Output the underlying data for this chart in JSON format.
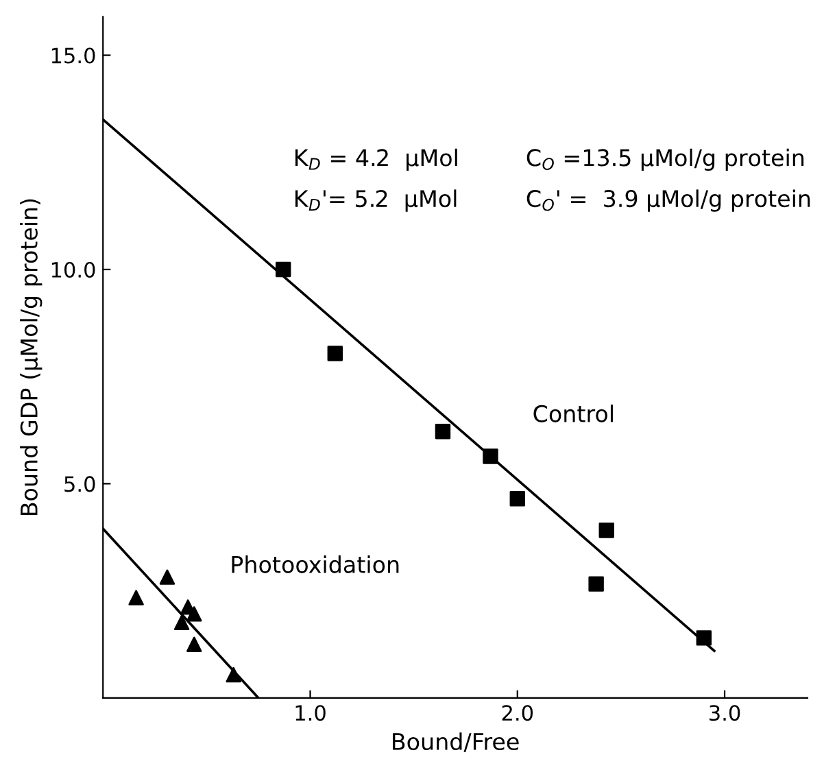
{
  "chart_data": {
    "type": "scatter",
    "xlabel": "Bound/Free",
    "ylabel": "Bound GDP (µMol/g protein)",
    "xlim": [
      0,
      3.4
    ],
    "ylim": [
      0,
      15.9
    ],
    "xticks": [
      {
        "value": 1.0,
        "label": "1.0"
      },
      {
        "value": 2.0,
        "label": "2.0"
      },
      {
        "value": 3.0,
        "label": "3.0"
      }
    ],
    "yticks": [
      {
        "value": 5.0,
        "label": "5.0"
      },
      {
        "value": 10.0,
        "label": "10.0"
      },
      {
        "value": 15.0,
        "label": "15.0"
      }
    ],
    "grid": false,
    "legend": false,
    "series": [
      {
        "name": "Control",
        "marker": "square",
        "color": "#000000",
        "x": [
          0.87,
          1.12,
          1.64,
          1.87,
          2.0,
          2.43,
          2.38,
          2.9
        ],
        "values": [
          10.0,
          8.04,
          6.22,
          5.64,
          4.65,
          3.91,
          2.66,
          1.4
        ]
      },
      {
        "name": "Photooxidation",
        "marker": "triangle",
        "color": "#000000",
        "x": [
          0.16,
          0.31,
          0.41,
          0.44,
          0.38,
          0.44,
          0.63
        ],
        "values": [
          2.34,
          2.82,
          2.12,
          1.96,
          1.76,
          1.25,
          0.54
        ]
      },
      {
        "type": "line",
        "marker": "none",
        "line_style": "solid",
        "color": "#000000",
        "x": [
          0,
          2.95
        ],
        "values": [
          13.5,
          1.1
        ]
      },
      {
        "type": "line",
        "marker": "none",
        "line_style": "solid",
        "color": "#000000",
        "x": [
          0,
          0.75
        ],
        "values": [
          3.95,
          0
        ]
      }
    ],
    "annotations": [
      "K$_{D}$ = 4.2  µMol",
      "C$_{O}$ =13.5 µMol/g protein",
      "K$_{D}$'= 5.2  µMol",
      "C$_{O}$' =  3.9 µMol/g protein"
    ]
  }
}
